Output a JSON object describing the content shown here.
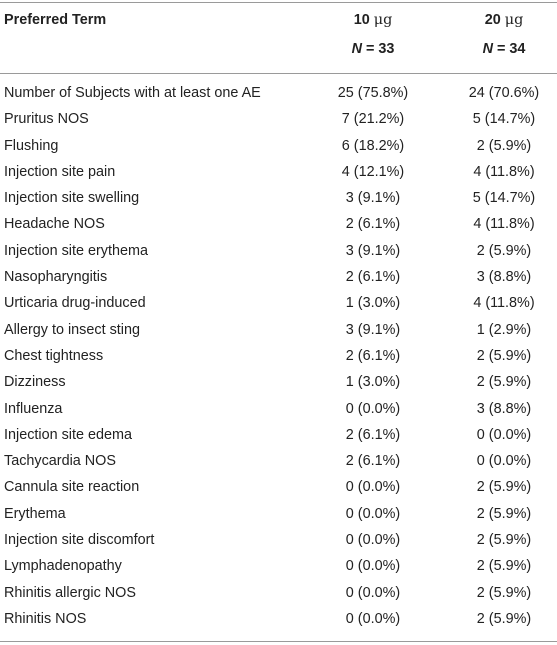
{
  "header": {
    "term_label": "Preferred Term",
    "col1_dose": "10",
    "col1_unit": "μg",
    "col1_n_label": "N",
    "col1_n_value": "= 33",
    "col2_dose": "20",
    "col2_unit": "μg",
    "col2_n_label": "N",
    "col2_n_value": "= 34"
  },
  "rows": [
    {
      "term": "Number of Subjects with at least one AE",
      "c1": "25 (75.8%)",
      "c2": "24 (70.6%)"
    },
    {
      "term": "Pruritus NOS",
      "c1": "7 (21.2%)",
      "c2": "5 (14.7%)"
    },
    {
      "term": "Flushing",
      "c1": "6 (18.2%)",
      "c2": "2 (5.9%)"
    },
    {
      "term": "Injection site pain",
      "c1": "4 (12.1%)",
      "c2": "4 (11.8%)"
    },
    {
      "term": "Injection site swelling",
      "c1": "3 (9.1%)",
      "c2": "5 (14.7%)"
    },
    {
      "term": "Headache NOS",
      "c1": "2 (6.1%)",
      "c2": "4 (11.8%)"
    },
    {
      "term": "Injection site erythema",
      "c1": "3 (9.1%)",
      "c2": "2 (5.9%)"
    },
    {
      "term": "Nasopharyngitis",
      "c1": "2 (6.1%)",
      "c2": "3 (8.8%)"
    },
    {
      "term": "Urticaria drug-induced",
      "c1": "1 (3.0%)",
      "c2": "4 (11.8%)"
    },
    {
      "term": "Allergy to insect sting",
      "c1": "3 (9.1%)",
      "c2": "1 (2.9%)"
    },
    {
      "term": "Chest tightness",
      "c1": "2 (6.1%)",
      "c2": "2 (5.9%)"
    },
    {
      "term": "Dizziness",
      "c1": "1 (3.0%)",
      "c2": "2 (5.9%)"
    },
    {
      "term": "Influenza",
      "c1": "0 (0.0%)",
      "c2": "3 (8.8%)"
    },
    {
      "term": "Injection site edema",
      "c1": "2 (6.1%)",
      "c2": "0 (0.0%)"
    },
    {
      "term": "Tachycardia NOS",
      "c1": "2 (6.1%)",
      "c2": "0 (0.0%)"
    },
    {
      "term": "Cannula site reaction",
      "c1": "0 (0.0%)",
      "c2": "2 (5.9%)"
    },
    {
      "term": "Erythema",
      "c1": "0 (0.0%)",
      "c2": "2 (5.9%)"
    },
    {
      "term": "Injection site discomfort",
      "c1": "0 (0.0%)",
      "c2": "2 (5.9%)"
    },
    {
      "term": "Lymphadenopathy",
      "c1": "0 (0.0%)",
      "c2": "2 (5.9%)"
    },
    {
      "term": "Rhinitis allergic NOS",
      "c1": "0 (0.0%)",
      "c2": "2 (5.9%)"
    },
    {
      "term": "Rhinitis NOS",
      "c1": "0 (0.0%)",
      "c2": "2 (5.9%)"
    }
  ]
}
